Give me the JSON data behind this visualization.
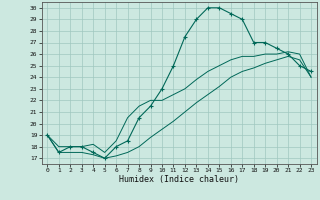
{
  "title": "",
  "xlabel": "Humidex (Indice chaleur)",
  "background_color": "#cce8e0",
  "grid_color": "#a0c8c0",
  "line_color": "#006858",
  "xlim": [
    -0.5,
    23.5
  ],
  "ylim": [
    16.5,
    30.5
  ],
  "xticks": [
    0,
    1,
    2,
    3,
    4,
    5,
    6,
    7,
    8,
    9,
    10,
    11,
    12,
    13,
    14,
    15,
    16,
    17,
    18,
    19,
    20,
    21,
    22,
    23
  ],
  "yticks": [
    17,
    18,
    19,
    20,
    21,
    22,
    23,
    24,
    25,
    26,
    27,
    28,
    29,
    30
  ],
  "main_y": [
    19,
    17.5,
    18,
    18,
    17.5,
    17,
    18,
    18.5,
    20.5,
    21.5,
    23,
    25,
    27.5,
    29,
    30,
    30,
    29.5,
    29,
    27,
    27,
    26.5,
    26,
    25,
    24.5
  ],
  "line2_y": [
    19,
    18,
    18,
    18,
    18.2,
    17.5,
    18.5,
    20.5,
    21.5,
    22,
    22,
    22.5,
    23,
    23.8,
    24.5,
    25,
    25.5,
    25.8,
    25.8,
    26,
    26,
    26.2,
    26,
    24
  ],
  "line3_y": [
    19,
    17.5,
    17.5,
    17.5,
    17.3,
    17,
    17.2,
    17.5,
    18,
    18.8,
    19.5,
    20.2,
    21,
    21.8,
    22.5,
    23.2,
    24,
    24.5,
    24.8,
    25.2,
    25.5,
    25.8,
    25.5,
    24
  ]
}
